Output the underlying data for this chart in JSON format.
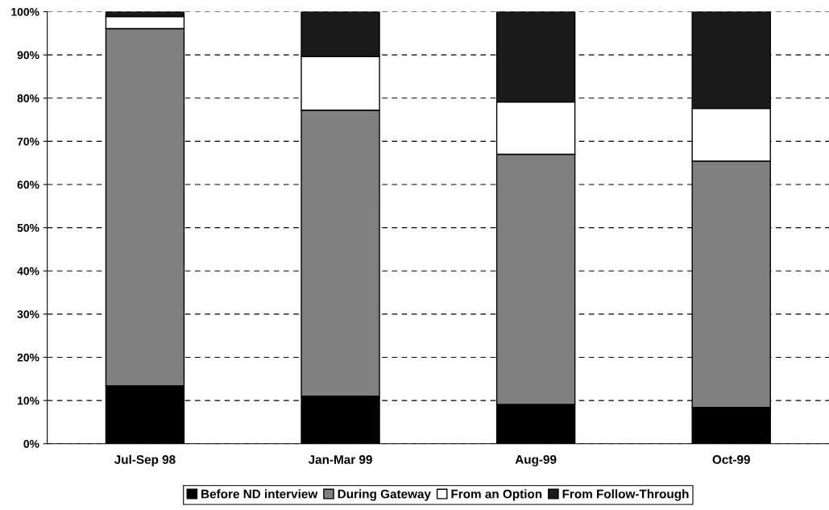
{
  "chart_data": {
    "type": "bar",
    "stacked": true,
    "categories": [
      "Jul-Sep 98",
      "Jan-Mar 99",
      "Aug-99",
      "Oct-99"
    ],
    "series": [
      {
        "name": "Before ND interview",
        "color": "#000000",
        "values": [
          13.4,
          11.0,
          9.1,
          8.4
        ]
      },
      {
        "name": "During Gateway",
        "color": "#808080",
        "values": [
          82.7,
          66.2,
          57.9,
          57.0
        ]
      },
      {
        "name": "From an Option",
        "color": "#ffffff",
        "values": [
          2.8,
          12.4,
          12.1,
          12.2
        ]
      },
      {
        "name": "From Follow-Through",
        "color": "#1a1a1a",
        "values": [
          1.1,
          10.4,
          20.9,
          22.4
        ]
      }
    ],
    "ylim": [
      0,
      100
    ],
    "yticks": [
      {
        "value": 0,
        "label": "0%"
      },
      {
        "value": 10,
        "label": "10%"
      },
      {
        "value": 20,
        "label": "20%"
      },
      {
        "value": 30,
        "label": "30%"
      },
      {
        "value": 40,
        "label": "40%"
      },
      {
        "value": 50,
        "label": "50%"
      },
      {
        "value": 60,
        "label": "60%"
      },
      {
        "value": 70,
        "label": "70%"
      },
      {
        "value": 80,
        "label": "80%"
      },
      {
        "value": 90,
        "label": "90%"
      },
      {
        "value": 100,
        "label": "100%"
      }
    ],
    "grid": "y",
    "legend": "bottom"
  }
}
